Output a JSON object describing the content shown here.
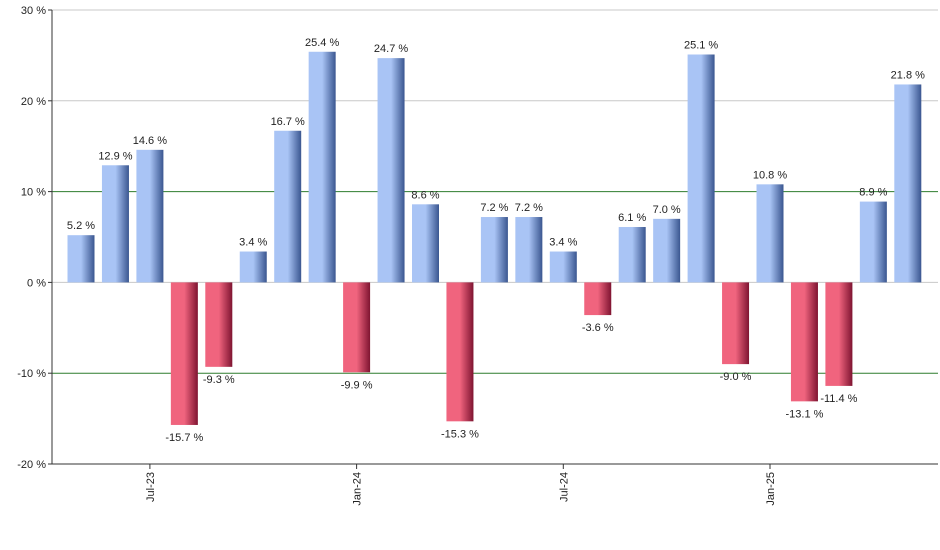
{
  "chart_data": {
    "type": "bar",
    "title": "",
    "xlabel": "",
    "ylabel": "",
    "ylim": [
      -20,
      30
    ],
    "y_ticks": [
      -20,
      -10,
      0,
      10,
      20,
      30
    ],
    "y_tick_labels": [
      "-20 %",
      "-10 %",
      "0 %",
      "10 %",
      "20 %",
      "30 %"
    ],
    "highlight_gridlines": [
      10,
      -10
    ],
    "x_tick_labels": [
      {
        "index": 2,
        "label": "Jul-23"
      },
      {
        "index": 8,
        "label": "Jan-24"
      },
      {
        "index": 14,
        "label": "Jul-24"
      },
      {
        "index": 20,
        "label": "Jan-25"
      }
    ],
    "values": [
      5.2,
      12.9,
      14.6,
      -15.7,
      -9.3,
      3.4,
      16.7,
      25.4,
      -9.9,
      24.7,
      8.6,
      -15.3,
      7.2,
      7.2,
      3.4,
      -3.6,
      6.1,
      7.0,
      25.1,
      -9.0,
      10.8,
      -13.1,
      -11.4,
      8.9,
      21.8
    ],
    "data_labels": [
      "5.2 %",
      "12.9 %",
      "14.6 %",
      "-15.7 %",
      "-9.3 %",
      "3.4 %",
      "16.7 %",
      "25.4 %",
      "-9.9 %",
      "24.7 %",
      "8.6 %",
      "-15.3 %",
      "7.2 %",
      "7.2 %",
      "3.4 %",
      "-3.6 %",
      "6.1 %",
      "7.0 %",
      "25.1 %",
      "-9.0 %",
      "10.8 %",
      "-13.1 %",
      "-11.4 %",
      "8.9 %",
      "21.8 %"
    ],
    "colors": {
      "positive_light": "#a9c4f5",
      "positive_dark": "#3a5690",
      "negative_light": "#f0647e",
      "negative_dark": "#7f1431",
      "gridline": "#c8c8c8",
      "highlight_gridline": "#2e7d2e",
      "axis": "#333333"
    },
    "grid": true
  }
}
